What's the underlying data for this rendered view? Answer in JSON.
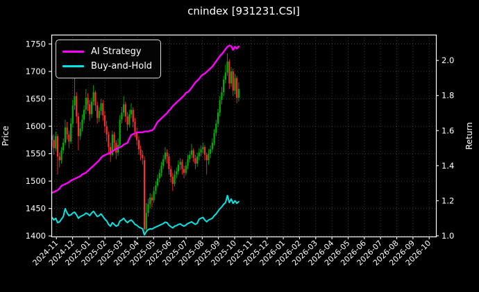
{
  "title": "cnindex [931231.CSI]",
  "colors": {
    "background": "#000000",
    "text": "#ffffff",
    "spine": "#ffffff",
    "grid": "#4d4d4d",
    "candle_up": "#00b300",
    "candle_down": "#ff2e2e",
    "ai_strategy": "#ff00ff",
    "buy_and_hold": "#00e6e6"
  },
  "chart_data": {
    "type": "candlestick+line",
    "title": "cnindex [931231.CSI]",
    "xlabel": "",
    "ylabel_left": "Price",
    "ylabel_right": "Return",
    "grid": true,
    "price_ticks": [
      1400,
      1450,
      1500,
      1550,
      1600,
      1650,
      1700,
      1750
    ],
    "return_ticks": [
      "1.0",
      "1.2",
      "1.4",
      "1.6",
      "1.8",
      "2.0"
    ],
    "x_ticks": [
      "2024-11",
      "2024-12",
      "2025-01",
      "2025-02",
      "2025-03",
      "2025-04",
      "2025-05",
      "2025-06",
      "2025-07",
      "2025-08",
      "2025-09",
      "2025-10",
      "2025-11",
      "2025-12",
      "2026-01",
      "2026-02",
      "2026-03",
      "2026-04",
      "2026-05",
      "2026-06",
      "2026-07",
      "2026-08",
      "2026-09",
      "2026-10"
    ],
    "ylim_price": [
      1399,
      1767
    ],
    "ylim_return": [
      0.996,
      2.147
    ],
    "x_data_span_months": [
      -0.27,
      11.25
    ],
    "legend": {
      "position": "upper-left",
      "entries": [
        {
          "label": "AI Strategy",
          "color": "#ff00ff"
        },
        {
          "label": "Buy-and-Hold",
          "color": "#00e6e6"
        }
      ]
    },
    "candles_ohlc": [
      [
        1583,
        1596,
        1562,
        1575
      ],
      [
        1575,
        1585,
        1548,
        1560
      ],
      [
        1560,
        1590,
        1555,
        1582
      ],
      [
        1582,
        1586,
        1512,
        1545
      ],
      [
        1545,
        1552,
        1525,
        1538
      ],
      [
        1538,
        1562,
        1532,
        1556
      ],
      [
        1556,
        1578,
        1550,
        1570
      ],
      [
        1570,
        1612,
        1565,
        1598
      ],
      [
        1598,
        1608,
        1576,
        1585
      ],
      [
        1585,
        1592,
        1560,
        1572
      ],
      [
        1572,
        1615,
        1568,
        1605
      ],
      [
        1605,
        1648,
        1598,
        1638
      ],
      [
        1638,
        1688,
        1630,
        1655
      ],
      [
        1655,
        1662,
        1605,
        1618
      ],
      [
        1618,
        1625,
        1556,
        1582
      ],
      [
        1582,
        1608,
        1575,
        1596
      ],
      [
        1596,
        1622,
        1590,
        1612
      ],
      [
        1612,
        1638,
        1605,
        1630
      ],
      [
        1630,
        1668,
        1622,
        1652
      ],
      [
        1652,
        1660,
        1628,
        1640
      ],
      [
        1640,
        1648,
        1610,
        1622
      ],
      [
        1622,
        1652,
        1615,
        1645
      ],
      [
        1645,
        1675,
        1638,
        1662
      ],
      [
        1662,
        1665,
        1628,
        1638
      ],
      [
        1638,
        1645,
        1605,
        1615
      ],
      [
        1615,
        1635,
        1608,
        1628
      ],
      [
        1628,
        1650,
        1620,
        1642
      ],
      [
        1642,
        1648,
        1610,
        1620
      ],
      [
        1620,
        1628,
        1588,
        1600
      ],
      [
        1600,
        1610,
        1572,
        1585
      ],
      [
        1585,
        1590,
        1548,
        1562
      ],
      [
        1562,
        1570,
        1535,
        1548
      ],
      [
        1548,
        1592,
        1545,
        1585
      ],
      [
        1585,
        1590,
        1558,
        1570
      ],
      [
        1570,
        1575,
        1540,
        1552
      ],
      [
        1552,
        1578,
        1546,
        1566
      ],
      [
        1566,
        1620,
        1560,
        1612
      ],
      [
        1612,
        1635,
        1605,
        1625
      ],
      [
        1625,
        1655,
        1618,
        1640
      ],
      [
        1640,
        1645,
        1608,
        1618
      ],
      [
        1618,
        1626,
        1592,
        1603
      ],
      [
        1603,
        1630,
        1598,
        1622
      ],
      [
        1622,
        1642,
        1615,
        1630
      ],
      [
        1630,
        1635,
        1598,
        1608
      ],
      [
        1608,
        1615,
        1580,
        1590
      ],
      [
        1590,
        1598,
        1565,
        1575
      ],
      [
        1575,
        1582,
        1548,
        1558
      ],
      [
        1558,
        1565,
        1538,
        1548
      ],
      [
        1548,
        1556,
        1530,
        1542
      ],
      [
        1538,
        1545,
        1405,
        1412
      ],
      [
        1412,
        1460,
        1406,
        1442
      ],
      [
        1442,
        1468,
        1435,
        1458
      ],
      [
        1458,
        1478,
        1450,
        1470
      ],
      [
        1470,
        1476,
        1452,
        1465
      ],
      [
        1465,
        1490,
        1460,
        1482
      ],
      [
        1482,
        1500,
        1476,
        1492
      ],
      [
        1492,
        1512,
        1488,
        1505
      ],
      [
        1505,
        1522,
        1498,
        1515
      ],
      [
        1515,
        1535,
        1508,
        1528
      ],
      [
        1528,
        1548,
        1522,
        1540
      ],
      [
        1540,
        1562,
        1535,
        1552
      ],
      [
        1552,
        1558,
        1532,
        1545
      ],
      [
        1545,
        1550,
        1512,
        1522
      ],
      [
        1522,
        1528,
        1498,
        1508
      ],
      [
        1508,
        1515,
        1482,
        1495
      ],
      [
        1495,
        1520,
        1490,
        1512
      ],
      [
        1512,
        1525,
        1505,
        1518
      ],
      [
        1518,
        1538,
        1512,
        1530
      ],
      [
        1530,
        1542,
        1520,
        1535
      ],
      [
        1535,
        1540,
        1512,
        1522
      ],
      [
        1522,
        1528,
        1505,
        1515
      ],
      [
        1515,
        1535,
        1510,
        1528
      ],
      [
        1528,
        1548,
        1522,
        1540
      ],
      [
        1540,
        1555,
        1534,
        1548
      ],
      [
        1548,
        1568,
        1542,
        1556
      ],
      [
        1556,
        1560,
        1535,
        1542
      ],
      [
        1542,
        1548,
        1522,
        1532
      ],
      [
        1532,
        1552,
        1526,
        1545
      ],
      [
        1545,
        1560,
        1538,
        1552
      ],
      [
        1552,
        1565,
        1545,
        1558
      ],
      [
        1558,
        1570,
        1550,
        1562
      ],
      [
        1562,
        1566,
        1538,
        1548
      ],
      [
        1548,
        1552,
        1512,
        1538
      ],
      [
        1538,
        1558,
        1530,
        1550
      ],
      [
        1550,
        1565,
        1542,
        1558
      ],
      [
        1558,
        1578,
        1552,
        1570
      ],
      [
        1570,
        1595,
        1565,
        1588
      ],
      [
        1588,
        1612,
        1582,
        1605
      ],
      [
        1605,
        1632,
        1598,
        1625
      ],
      [
        1625,
        1655,
        1618,
        1648
      ],
      [
        1648,
        1672,
        1640,
        1662
      ],
      [
        1662,
        1692,
        1655,
        1685
      ],
      [
        1685,
        1712,
        1678,
        1698
      ],
      [
        1698,
        1733,
        1692,
        1718
      ],
      [
        1718,
        1722,
        1668,
        1678
      ],
      [
        1678,
        1708,
        1672,
        1700
      ],
      [
        1700,
        1705,
        1655,
        1665
      ],
      [
        1665,
        1695,
        1658,
        1688
      ],
      [
        1688,
        1692,
        1642,
        1652
      ],
      [
        1652,
        1680,
        1645,
        1668
      ]
    ],
    "ai_strategy_return": [
      1.245,
      1.25,
      1.255,
      1.26,
      1.27,
      1.285,
      1.29,
      1.295,
      1.3,
      1.305,
      1.315,
      1.32,
      1.325,
      1.33,
      1.335,
      1.34,
      1.35,
      1.355,
      1.36,
      1.37,
      1.38,
      1.39,
      1.4,
      1.41,
      1.42,
      1.43,
      1.445,
      1.455,
      1.46,
      1.465,
      1.47,
      1.475,
      1.48,
      1.49,
      1.495,
      1.5,
      1.505,
      1.51,
      1.52,
      1.525,
      1.53,
      1.555,
      1.575,
      1.58,
      1.585,
      1.59,
      1.59,
      1.59,
      1.59,
      1.595,
      1.595,
      1.595,
      1.6,
      1.6,
      1.61,
      1.63,
      1.65,
      1.66,
      1.67,
      1.68,
      1.69,
      1.7,
      1.715,
      1.725,
      1.74,
      1.75,
      1.76,
      1.77,
      1.78,
      1.79,
      1.8,
      1.815,
      1.82,
      1.83,
      1.845,
      1.86,
      1.875,
      1.885,
      1.895,
      1.91,
      1.92,
      1.925,
      1.935,
      1.945,
      1.955,
      1.965,
      1.98,
      1.995,
      2.01,
      2.025,
      2.035,
      2.05,
      2.065,
      2.078,
      2.085,
      2.082,
      2.06,
      2.078,
      2.068,
      2.08
    ],
    "buy_and_hold_return": [
      1.105,
      1.09,
      1.1,
      1.075,
      1.08,
      1.095,
      1.11,
      1.155,
      1.13,
      1.115,
      1.12,
      1.13,
      1.135,
      1.12,
      1.1,
      1.11,
      1.115,
      1.12,
      1.13,
      1.125,
      1.115,
      1.13,
      1.14,
      1.125,
      1.11,
      1.115,
      1.125,
      1.11,
      1.095,
      1.085,
      1.065,
      1.055,
      1.075,
      1.065,
      1.055,
      1.06,
      1.085,
      1.09,
      1.1,
      1.085,
      1.075,
      1.085,
      1.09,
      1.08,
      1.065,
      1.06,
      1.05,
      1.045,
      1.04,
      1.005,
      1.025,
      1.035,
      1.04,
      1.038,
      1.045,
      1.05,
      1.055,
      1.06,
      1.065,
      1.07,
      1.078,
      1.075,
      1.06,
      1.052,
      1.045,
      1.055,
      1.058,
      1.065,
      1.068,
      1.06,
      1.055,
      1.062,
      1.07,
      1.075,
      1.08,
      1.072,
      1.065,
      1.072,
      1.095,
      1.1,
      1.105,
      1.09,
      1.08,
      1.09,
      1.095,
      1.1,
      1.115,
      1.125,
      1.14,
      1.155,
      1.165,
      1.18,
      1.19,
      1.23,
      1.19,
      1.21,
      1.185,
      1.2,
      1.185,
      1.195
    ]
  }
}
